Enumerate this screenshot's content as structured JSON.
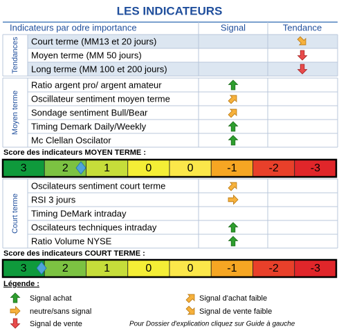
{
  "title": "LES INDICATEURS",
  "header": {
    "indicators": "Indicateurs par odre importance",
    "signal": "Signal",
    "trend": "Tendance"
  },
  "groups": [
    {
      "label": "Tendances",
      "rows": [
        "Court terme (MM13 et 20 jours)",
        "Moyen terme (MM 50 jours)",
        "Long terme (MM 100 et 200 jours)"
      ]
    },
    {
      "label": "Moyen terme",
      "rows": [
        "Ratio argent pro/ argent amateur",
        "Oscillateur sentiment moyen terme",
        "Sondage sentiment Bull/Bear",
        "Timing Demark Daily/Weekly",
        "Mc Clellan Oscilator"
      ]
    },
    {
      "label": "Court terme",
      "rows": [
        "Oscilateurs sentiment court terme",
        "RSI 3 jours",
        "Timing DeMark intraday",
        "Oscilateurs techniques intraday",
        "Ratio Volume NYSE"
      ]
    }
  ],
  "scores": [
    {
      "label": "Score des indicateurs MOYEN TERME :",
      "scale": [
        3,
        2,
        1,
        0,
        0,
        -1,
        -2,
        -3
      ]
    },
    {
      "label": "Score des indicateurs COURT TERME :",
      "scale": [
        3,
        2,
        1,
        0,
        0,
        -1,
        -2,
        -3
      ]
    }
  ],
  "legend": {
    "title": "Légende :",
    "items": [
      "Signal achat",
      "neutre/sans signal",
      "Signal de vente",
      "Signal d'achat faible",
      "Signal de vente faible"
    ],
    "note": "Pour Dossier d'explication cliquez sur Guide à gauche"
  }
}
